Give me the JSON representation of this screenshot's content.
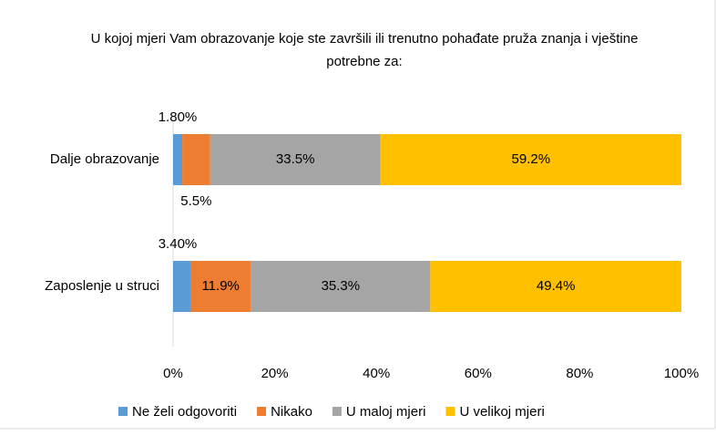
{
  "chart_data": {
    "type": "bar",
    "orientation": "horizontal",
    "stacked": true,
    "title": "U kojoj mjeri Vam obrazovanje koje ste završili ili trenutno pohađate pruža znanja i vještine potrebne za:",
    "categories": [
      "Dalje obrazovanje",
      "Zaposlenje u struci"
    ],
    "series": [
      {
        "name": "Ne želi odgovoriti",
        "color": "#5b9bd5",
        "values": [
          1.8,
          3.4
        ],
        "value_labels": [
          "1.80%",
          "3.40%"
        ]
      },
      {
        "name": "Nikako",
        "color": "#ed7d31",
        "values": [
          5.5,
          11.9
        ],
        "value_labels": [
          "5.5%",
          "11.9%"
        ]
      },
      {
        "name": "U maloj mjeri",
        "color": "#a5a5a5",
        "values": [
          33.5,
          35.3
        ],
        "value_labels": [
          "33.5%",
          "35.3%"
        ]
      },
      {
        "name": "U velikoj mjeri",
        "color": "#ffc000",
        "values": [
          59.2,
          49.4
        ],
        "value_labels": [
          "59.2%",
          "49.4%"
        ]
      }
    ],
    "xlim": [
      0,
      100
    ],
    "xticks": [
      {
        "value": 0,
        "label": "0%"
      },
      {
        "value": 20,
        "label": "20%"
      },
      {
        "value": 40,
        "label": "40%"
      },
      {
        "value": 60,
        "label": "60%"
      },
      {
        "value": 80,
        "label": "80%"
      },
      {
        "value": 100,
        "label": "100%"
      }
    ],
    "grid": false,
    "legend": "bottom"
  }
}
